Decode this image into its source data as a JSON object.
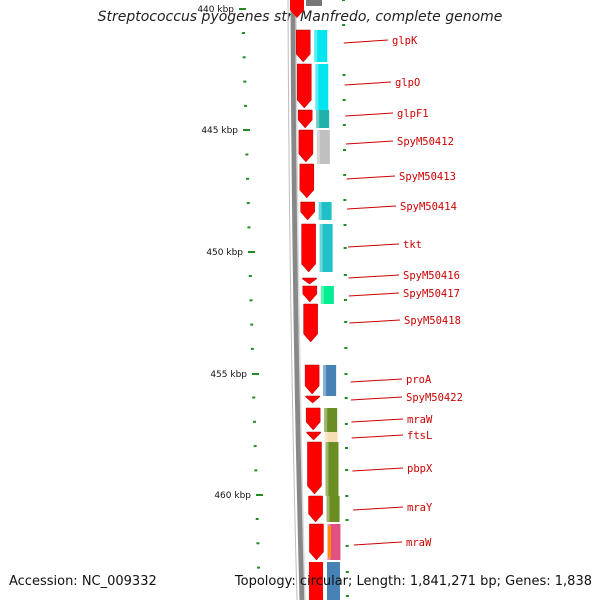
{
  "title": "Streptococcus pyogenes str. Manfredo, complete genome",
  "footer": {
    "accession": "Accession: NC_009332",
    "topology": "Topology: circular; Length: 1,841,271 bp; Genes: 1,838"
  },
  "colors": {
    "backbone": "#888888",
    "gene_arrow": "#ff0000",
    "label": "#cc0000",
    "tick": "#228b22"
  },
  "scale_ticks": [
    {
      "label": "440 kbp"
    },
    {
      "label": "445 kbp"
    },
    {
      "label": "450 kbp"
    },
    {
      "label": "455 kbp"
    },
    {
      "label": "460 kbp"
    }
  ],
  "genes": [
    {
      "name": "glpK",
      "cog_color": "#00e5ee"
    },
    {
      "name": "glpO",
      "cog_color": "#00e5ee"
    },
    {
      "name": "glpF1",
      "cog_color": "#20b2aa"
    },
    {
      "name": "SpyM50412",
      "cog_color": "#c0c0c0"
    },
    {
      "name": "SpyM50413",
      "cog_color": ""
    },
    {
      "name": "SpyM50414",
      "cog_color": "#20c0c8"
    },
    {
      "name": "tkt",
      "cog_color": "#20c0c8"
    },
    {
      "name": "SpyM50416",
      "cog_color": ""
    },
    {
      "name": "SpyM50417",
      "cog_color": "#00ee90"
    },
    {
      "name": "SpyM50418",
      "cog_color": ""
    },
    {
      "name": "proA",
      "cog_color": "#4682b4"
    },
    {
      "name": "SpyM50422",
      "cog_color": ""
    },
    {
      "name": "mraW",
      "cog_color": "#6b8e23"
    },
    {
      "name": "ftsL",
      "cog_color": "#f5deb3"
    },
    {
      "name": "pbpX",
      "cog_color": "#6b8e23"
    },
    {
      "name": "mraY",
      "cog_color": "#6b8e23"
    },
    {
      "name": "mraW",
      "cog_color": "#e05080"
    }
  ]
}
